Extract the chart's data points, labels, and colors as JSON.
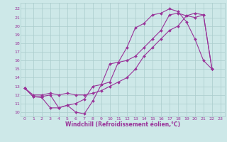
{
  "xlabel": "Windchill (Refroidissement éolien,°C)",
  "bg_color": "#cde8e8",
  "grid_color": "#aacccc",
  "line_color": "#993399",
  "xlim": [
    -0.5,
    23.5
  ],
  "ylim": [
    9.5,
    22.7
  ],
  "xticks": [
    0,
    1,
    2,
    3,
    4,
    5,
    6,
    7,
    8,
    9,
    10,
    11,
    12,
    13,
    14,
    15,
    16,
    17,
    18,
    19,
    20,
    21,
    22,
    23
  ],
  "yticks": [
    10,
    11,
    12,
    13,
    14,
    15,
    16,
    17,
    18,
    19,
    20,
    21,
    22
  ],
  "series1_x": [
    0,
    1,
    2,
    3,
    4,
    5,
    6,
    7,
    8,
    9,
    10,
    11,
    12,
    13,
    14,
    15,
    16,
    17,
    18,
    19,
    20,
    21,
    22
  ],
  "series1_y": [
    12.8,
    11.8,
    11.7,
    10.5,
    10.5,
    10.8,
    10.0,
    9.8,
    11.3,
    13.2,
    15.6,
    15.8,
    17.5,
    19.8,
    20.3,
    21.3,
    21.5,
    22.0,
    21.7,
    20.5,
    18.5,
    16.0,
    15.0
  ],
  "series2_x": [
    0,
    1,
    2,
    3,
    4,
    5,
    6,
    7,
    8,
    9,
    10,
    11,
    12,
    13,
    14,
    15,
    16,
    17,
    18,
    19,
    20,
    21,
    22
  ],
  "series2_y": [
    12.8,
    11.8,
    11.8,
    12.0,
    10.5,
    10.8,
    11.0,
    11.5,
    13.0,
    13.2,
    13.5,
    15.8,
    16.0,
    16.5,
    17.5,
    18.5,
    19.5,
    21.3,
    21.5,
    21.2,
    21.0,
    21.3,
    15.0
  ],
  "series3_x": [
    0,
    1,
    2,
    3,
    4,
    5,
    6,
    7,
    8,
    9,
    10,
    11,
    12,
    13,
    14,
    15,
    16,
    17,
    18,
    19,
    20,
    21,
    22
  ],
  "series3_y": [
    12.8,
    12.0,
    12.0,
    12.2,
    12.0,
    12.2,
    12.0,
    12.0,
    12.2,
    12.5,
    13.0,
    13.5,
    14.0,
    15.0,
    16.5,
    17.5,
    18.5,
    19.5,
    20.0,
    21.2,
    21.5,
    21.3,
    15.0
  ],
  "tick_fontsize": 4.5,
  "xlabel_fontsize": 5.5
}
